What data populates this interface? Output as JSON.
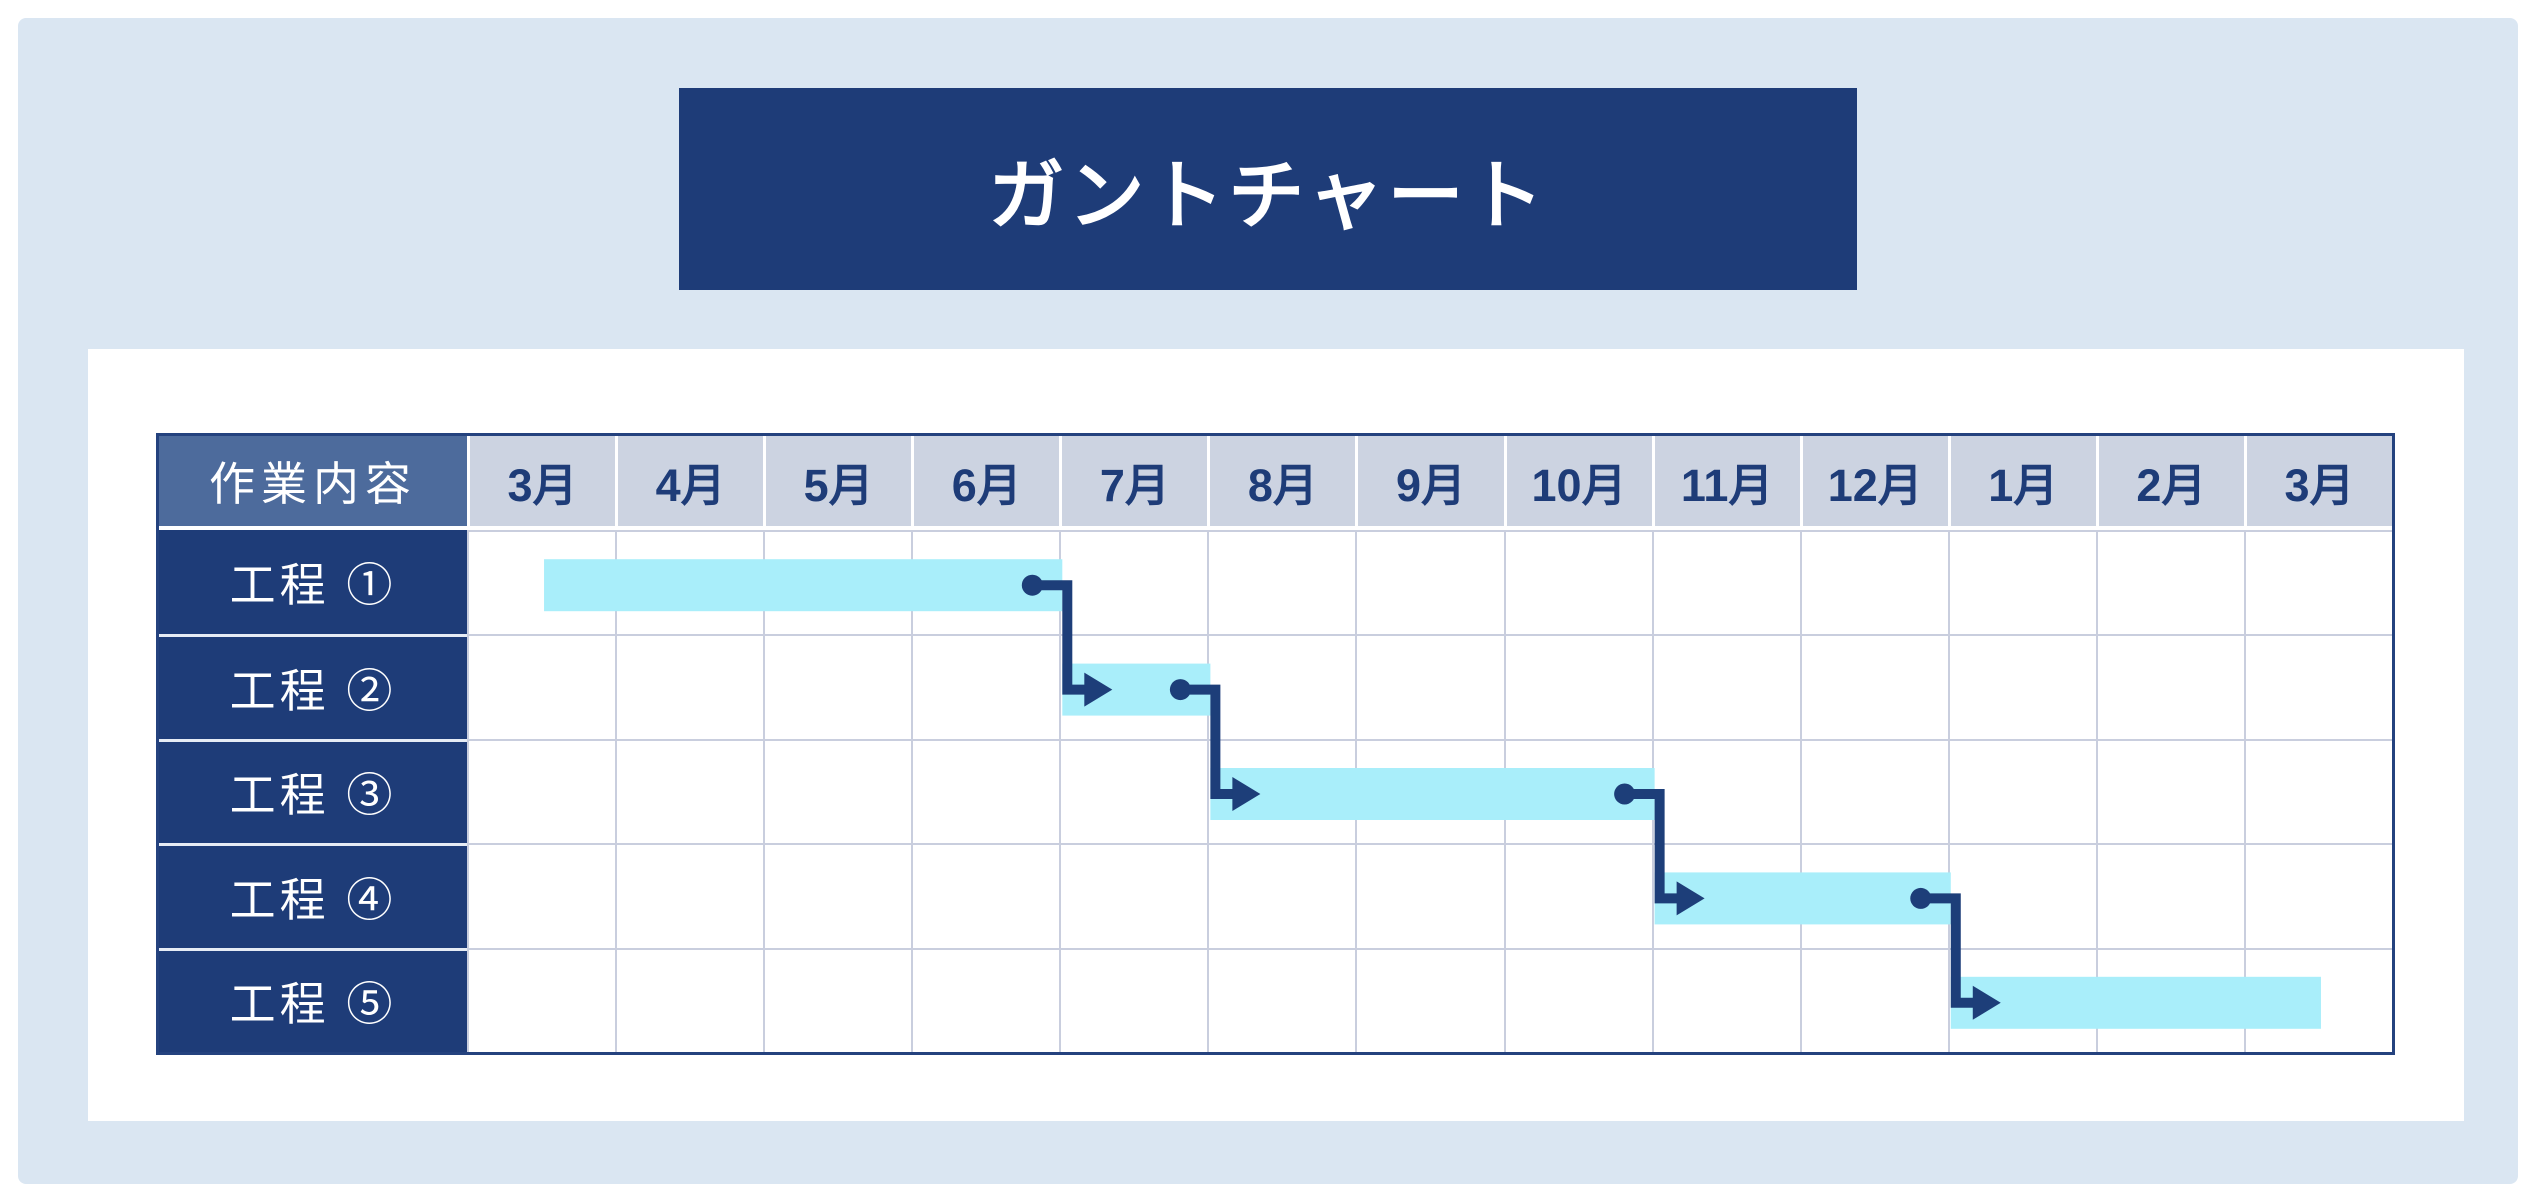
{
  "page": {
    "title": "ガントチャート"
  },
  "colors": {
    "panel_background": "#dae6f2",
    "banner_background": "#1e3c78",
    "card_background": "#ffffff",
    "corner_header_background": "#4d6b9c",
    "month_header_background": "#ccd3e1",
    "month_header_text": "#1e3c78",
    "row_label_background": "#1e3c78",
    "row_label_text": "#ffffff",
    "bar_fill": "#a9eefa",
    "connector_stroke": "#1d3e79",
    "grid_line": "#c9cede",
    "table_border": "#24427e"
  },
  "chart_data": {
    "type": "bar",
    "subtype": "gantt",
    "title": "ガントチャート",
    "header_label": "作業内容",
    "x_axis": {
      "unit": "month",
      "categories": [
        "3月",
        "4月",
        "5月",
        "6月",
        "7月",
        "8月",
        "9月",
        "10月",
        "11月",
        "12月",
        "1月",
        "2月",
        "3月"
      ]
    },
    "tasks": [
      {
        "label": "工程 ①",
        "start": 0.5,
        "end": 4.0
      },
      {
        "label": "工程 ②",
        "start": 4.0,
        "end": 5.0
      },
      {
        "label": "工程 ③",
        "start": 5.0,
        "end": 8.0
      },
      {
        "label": "工程 ④",
        "start": 8.0,
        "end": 10.0
      },
      {
        "label": "工程 ⑤",
        "start": 10.0,
        "end": 12.5
      }
    ],
    "dependencies": [
      {
        "from": 0,
        "to": 1
      },
      {
        "from": 1,
        "to": 2
      },
      {
        "from": 2,
        "to": 3
      },
      {
        "from": 3,
        "to": 4
      }
    ],
    "bar_color": "#a9eefa",
    "connector_color": "#1d3e79",
    "legend": "none",
    "grid": true
  }
}
